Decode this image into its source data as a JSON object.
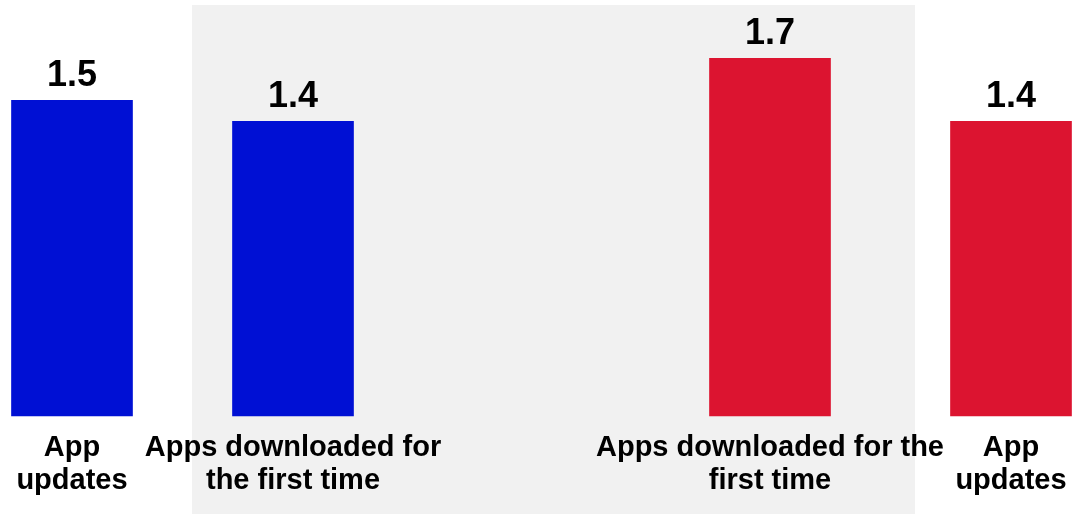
{
  "chart_data": [
    {
      "type": "bar",
      "categories": [
        "App updates",
        "Apps downloaded for the first time"
      ],
      "values": [
        1.5,
        1.4
      ],
      "color": "#0010d4",
      "data_labels": true
    },
    {
      "type": "bar",
      "categories": [
        "Apps downloaded for the first time",
        "App updates"
      ],
      "values": [
        1.7,
        1.4
      ],
      "color": "#dc1430",
      "data_labels": true
    }
  ]
}
